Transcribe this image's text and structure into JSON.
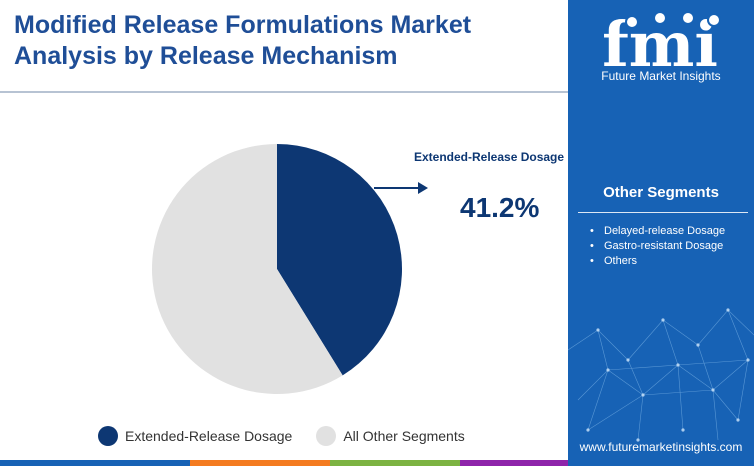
{
  "header": {
    "title_line1": "Modified Release Formulations Market",
    "title_line2": "Analysis by Release Mechanism"
  },
  "brand": {
    "logo_text": "fmi",
    "name": "Future Market Insights",
    "website": "www.futuremarketinsights.com"
  },
  "other_segments": {
    "title": "Other Segments",
    "items": [
      "Delayed-release Dosage",
      "Gastro-resistant Dosage",
      "Others"
    ]
  },
  "callout": {
    "label": "Extended-Release Dosage",
    "value": "41.2%"
  },
  "chart_data": {
    "type": "pie",
    "slices": [
      {
        "name": "Extended-Release Dosage",
        "value": 41.2,
        "color": "#0d3773"
      },
      {
        "name": "All Other Segments",
        "value": 58.8,
        "color": "#e1e1e1"
      }
    ],
    "legend": [
      "Extended-Release Dosage",
      "All Other Segments"
    ],
    "legend_position": "bottom"
  },
  "colors": {
    "title": "#1f4e97",
    "sidebar": "#1762b5",
    "accent_dark": "#0d3773",
    "bottom_bar": [
      "#1762b5",
      "#f47b20",
      "#7cb342",
      "#8e24aa"
    ]
  }
}
